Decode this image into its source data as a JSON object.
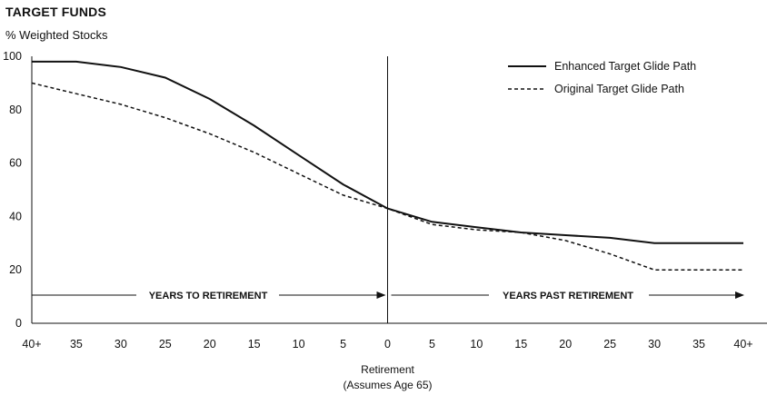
{
  "chart_data": {
    "type": "line",
    "title": "TARGET FUNDS",
    "ylabel": "% Weighted Stocks",
    "xlabel": "Retirement",
    "xlabel_note": "(Assumes Age 65)",
    "ylim": [
      0,
      100
    ],
    "y_ticks": [
      0,
      20,
      40,
      60,
      80,
      100
    ],
    "categories": [
      "40+",
      "35",
      "30",
      "25",
      "20",
      "15",
      "10",
      "5",
      "0",
      "5",
      "10",
      "15",
      "20",
      "25",
      "30",
      "35",
      "40+"
    ],
    "series": [
      {
        "name": "Enhanced Target Glide Path",
        "style": "solid",
        "values": [
          98,
          98,
          96,
          92,
          84,
          74,
          63,
          52,
          43,
          38,
          36,
          34,
          33,
          32,
          30,
          30,
          30
        ]
      },
      {
        "name": "Original Target Glide Path",
        "style": "dashed",
        "values": [
          90,
          86,
          82,
          77,
          71,
          64,
          56,
          48,
          43,
          37,
          35,
          34,
          31,
          26,
          20,
          20,
          20
        ]
      }
    ],
    "annotations": {
      "left_arrow": "YEARS TO RETIREMENT",
      "right_arrow": "YEARS PAST RETIREMENT"
    },
    "legend_position": "top-right",
    "grid": false
  }
}
